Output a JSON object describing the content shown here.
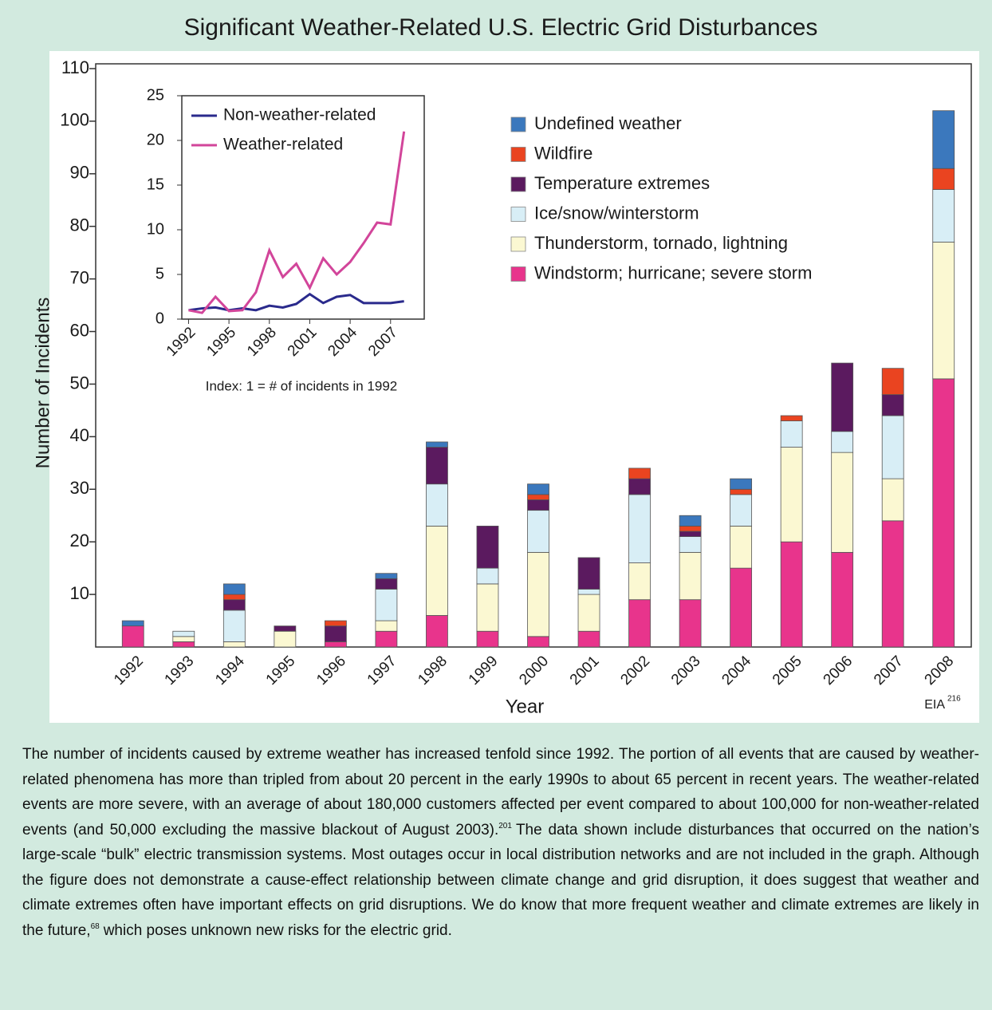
{
  "chart_data": [
    {
      "type": "bar",
      "stacked": true,
      "title": "Significant Weather-Related U.S. Electric Grid Disturbances",
      "x_label": "Year",
      "y_label": "Number of Incidents",
      "source": "EIA",
      "source_ref": "216",
      "categories": [
        "1992",
        "1993",
        "1994",
        "1995",
        "1996",
        "1997",
        "1998",
        "1999",
        "2000",
        "2001",
        "2002",
        "2003",
        "2004",
        "2005",
        "2006",
        "2007",
        "2008"
      ],
      "series": [
        {
          "name": "Windstorm; hurricane; severe storm",
          "color": "#e8348c",
          "values": [
            4,
            1,
            0,
            0,
            1,
            3,
            6,
            3,
            2,
            3,
            9,
            9,
            15,
            20,
            18,
            24,
            51
          ]
        },
        {
          "name": "Thunderstorm, tornado, lightning",
          "color": "#fbf8d2",
          "values": [
            0,
            1,
            1,
            3,
            0,
            2,
            17,
            9,
            16,
            7,
            7,
            9,
            8,
            18,
            19,
            8,
            26
          ]
        },
        {
          "name": "Ice/snow/winterstorm",
          "color": "#d8eef6",
          "values": [
            0,
            1,
            6,
            0,
            0,
            6,
            8,
            3,
            8,
            1,
            13,
            3,
            6,
            5,
            4,
            12,
            10
          ]
        },
        {
          "name": "Temperature extremes",
          "color": "#5b1a5f",
          "values": [
            0,
            0,
            2,
            1,
            3,
            2,
            7,
            8,
            2,
            6,
            3,
            1,
            0,
            0,
            13,
            4,
            0
          ]
        },
        {
          "name": "Wildfire",
          "color": "#ea4420",
          "values": [
            0,
            0,
            1,
            0,
            1,
            0,
            0,
            0,
            1,
            0,
            2,
            1,
            1,
            1,
            0,
            5,
            4
          ]
        },
        {
          "name": "Undefined weather",
          "color": "#3b78bd",
          "values": [
            1,
            0,
            2,
            0,
            0,
            1,
            1,
            0,
            2,
            0,
            0,
            2,
            2,
            0,
            0,
            0,
            11
          ]
        }
      ],
      "ylim": [
        0,
        110
      ],
      "yticks": [
        10,
        20,
        30,
        40,
        50,
        60,
        70,
        80,
        90,
        100,
        110
      ]
    },
    {
      "type": "line",
      "annotation": "Index: 1 = # of incidents in 1992",
      "x": [
        1992,
        1993,
        1994,
        1995,
        1996,
        1997,
        1998,
        1999,
        2000,
        2001,
        2002,
        2003,
        2004,
        2005,
        2006,
        2007,
        2008
      ],
      "series": [
        {
          "name": "Non-weather-related",
          "color": "#2a2a8c",
          "values": [
            1,
            1.2,
            1.3,
            1,
            1.2,
            1,
            1.5,
            1.3,
            1.7,
            2.8,
            1.8,
            2.5,
            2.7,
            1.8,
            1.8,
            1.8,
            2
          ]
        },
        {
          "name": "Weather-related",
          "color": "#d2459a",
          "values": [
            1,
            0.7,
            2.5,
            0.9,
            1,
            3,
            7.7,
            4.7,
            6.2,
            3.5,
            6.8,
            5,
            6.4,
            8.5,
            10.8,
            10.6,
            21
          ]
        }
      ],
      "xlim": [
        1991.5,
        2009.5
      ],
      "xticks": [
        1992,
        1995,
        1998,
        2001,
        2004,
        2007
      ],
      "ylim": [
        0,
        25
      ],
      "yticks": [
        0,
        5,
        10,
        15,
        20,
        25
      ]
    }
  ],
  "caption": [
    "The number of incidents caused by extreme weather has increased tenfold since 1992. The portion of all events that are caused by weather-related phenomena has more than tripled from about 20 percent in the early 1990s to about 65 percent in recent years. The weather-related events are more severe, with an average of about 180,000 customers affected per event compared to about 100,000 for non-weather-related events (and 50,000 excluding the massive blackout of August 2003).",
    "201",
    "The data shown include disturbances that occurred on the nation’s large-scale “bulk” electric transmission systems. Most outages occur in local distribution networks and are not included in the graph. Although the figure does not demonstrate a cause-effect relationship between climate change and grid disruption, it does suggest that weather and climate extremes often have important effects on grid disruptions. We do know that more frequent weather and climate extremes are likely in the future,",
    "68",
    "which poses unknown new risks for the electric grid."
  ]
}
